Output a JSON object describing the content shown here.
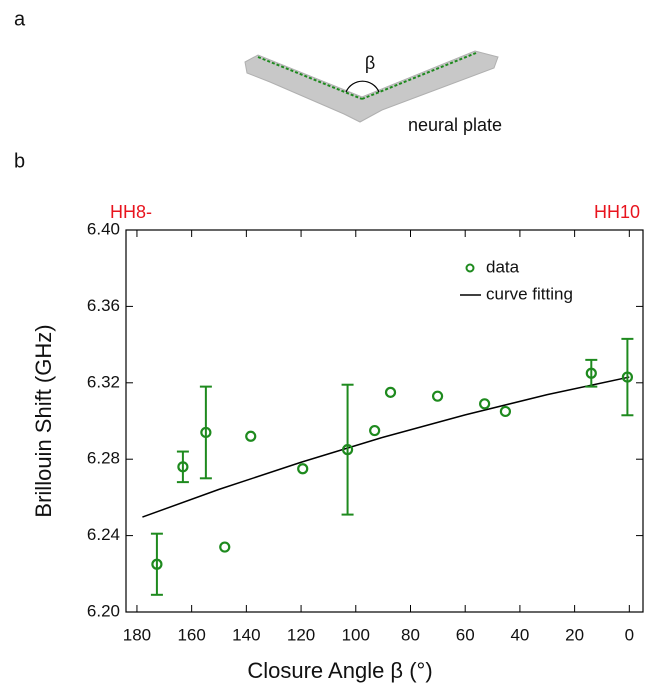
{
  "panels": [
    "a",
    "b"
  ],
  "diagram": {
    "angle_label": "β",
    "label": "neural plate"
  },
  "chart_data": {
    "type": "scatter",
    "xlabel": "Closure Angle β (°)",
    "ylabel": "Brillouin Shift (GHz)",
    "annotations": [
      "HH8-",
      "HH10"
    ],
    "annotation_color": "#e8141e",
    "xlim": [
      184,
      -5
    ],
    "xticks": [
      180,
      160,
      140,
      120,
      100,
      80,
      60,
      40,
      20,
      0
    ],
    "ylim": [
      6.2,
      6.4
    ],
    "yticks": [
      {
        "value": 6.2,
        "label": "6.20"
      },
      {
        "value": 6.24,
        "label": "6.24"
      },
      {
        "value": 6.28,
        "label": "6.28"
      },
      {
        "value": 6.32,
        "label": "6.32"
      },
      {
        "value": 6.36,
        "label": "6.36"
      },
      {
        "value": 6.4,
        "label": "6.40"
      }
    ],
    "series": [
      {
        "name": "data",
        "color": "#1e8a1e",
        "x": [
          172.7,
          163.2,
          154.8,
          147.9,
          138.4,
          119.4,
          103.0,
          93.1,
          87.3,
          70.1,
          52.9,
          45.3,
          13.9,
          0.7
        ],
        "values": [
          6.225,
          6.276,
          6.294,
          6.234,
          6.292,
          6.275,
          6.285,
          6.295,
          6.315,
          6.313,
          6.309,
          6.305,
          6.325,
          6.323
        ],
        "errors": [
          0.016,
          0.008,
          0.024,
          null,
          null,
          null,
          0.034,
          null,
          null,
          null,
          null,
          null,
          0.007,
          0.02
        ]
      },
      {
        "name": "curve fitting",
        "color": "#000000",
        "x": [
          178,
          150,
          120,
          90,
          60,
          30,
          0
        ],
        "values": [
          6.2497,
          6.2642,
          6.2784,
          6.2915,
          6.3032,
          6.3138,
          6.323
        ]
      }
    ]
  }
}
